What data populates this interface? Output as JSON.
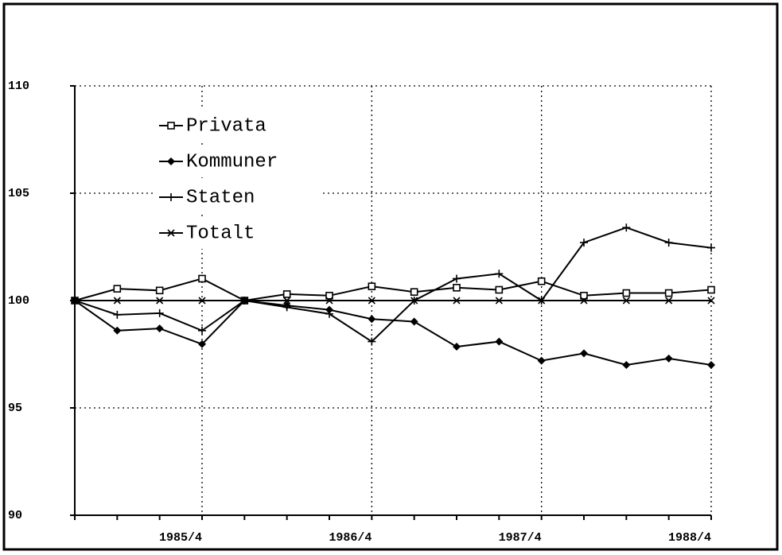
{
  "chart_data": {
    "type": "line",
    "categories": [
      null,
      null,
      null,
      "1985/4",
      null,
      null,
      null,
      "1986/4",
      null,
      null,
      null,
      "1987/4",
      null,
      null,
      null,
      "1988/4"
    ],
    "series": [
      {
        "name": "Privata",
        "color": "#000000",
        "marker": "square",
        "values": [
          100,
          100.55,
          100.47,
          101.02,
          100,
          100.3,
          100.23,
          100.66,
          100.4,
          100.6,
          100.5,
          100.9,
          100.23,
          100.35,
          100.35,
          100.5
        ]
      },
      {
        "name": "Kommuner",
        "color": "#000000",
        "marker": "diamond",
        "values": [
          100,
          98.6,
          98.7,
          97.97,
          100,
          99.77,
          99.57,
          99.14,
          99.02,
          97.85,
          98.09,
          97.2,
          97.54,
          97.0,
          97.3,
          97.0
        ]
      },
      {
        "name": "Staten",
        "color": "#000000",
        "marker": "plus",
        "values": [
          100,
          99.34,
          99.41,
          98.6,
          100,
          99.69,
          99.38,
          98.09,
          100,
          101.02,
          101.25,
          100,
          102.7,
          103.4,
          102.7,
          102.46
        ]
      },
      {
        "name": "Totalt",
        "color": "#000000",
        "marker": "x",
        "values": [
          100,
          100,
          100,
          100,
          100,
          100,
          100,
          100,
          100,
          100,
          100,
          100,
          100,
          100,
          100,
          100
        ]
      }
    ],
    "ylim": [
      90,
      110
    ],
    "yticks": [
      90,
      95,
      100,
      105,
      110
    ],
    "grid": true,
    "legend": "upper left"
  }
}
